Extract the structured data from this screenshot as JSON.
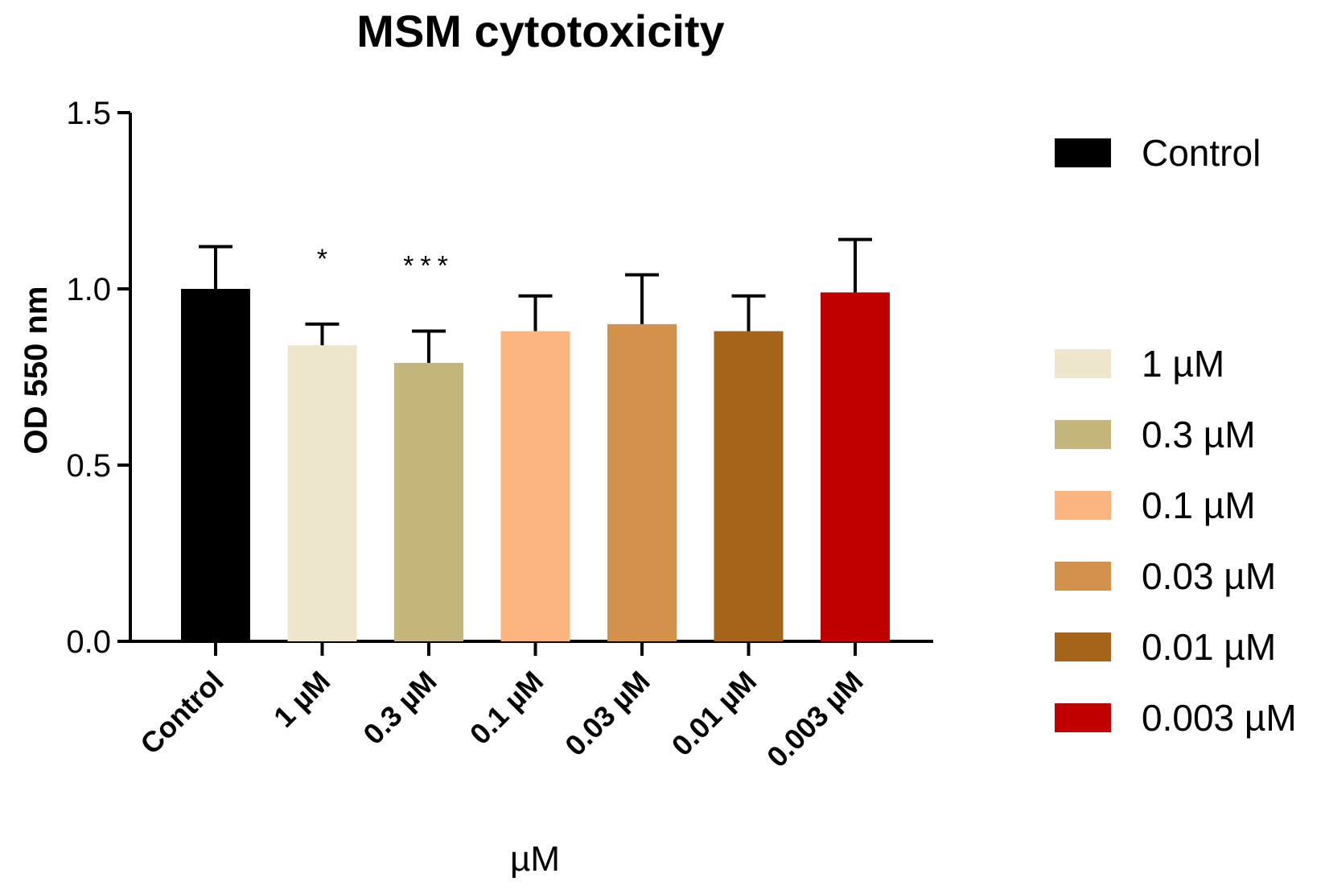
{
  "chart_data": {
    "type": "bar",
    "title": "MSM cytotoxicity",
    "xlabel": "µM",
    "ylabel": "OD 550 nm",
    "ylim": [
      0,
      1.5
    ],
    "yticks": [
      "0.0",
      "0.5",
      "1.0",
      "1.5"
    ],
    "ytick_values": [
      0,
      0.5,
      1.0,
      1.5
    ],
    "categories": [
      "Control",
      "1 µM",
      "0.3 µM",
      "0.1 µM",
      "0.03 µM",
      "0.01 µM",
      "0.003 µM"
    ],
    "values": [
      1.0,
      0.84,
      0.79,
      0.88,
      0.9,
      0.88,
      0.99
    ],
    "errors": [
      0.12,
      0.06,
      0.09,
      0.1,
      0.14,
      0.1,
      0.15
    ],
    "significance": [
      "",
      "*",
      "***",
      "",
      "",
      "",
      ""
    ],
    "colors": [
      "#000000",
      "#ede5cc",
      "#c3b57b",
      "#fcb57e",
      "#d3924b",
      "#a4651b",
      "#c00000"
    ],
    "legend": {
      "placement": "right",
      "groups": [
        [
          "Control"
        ],
        [
          "1 µM",
          "0.3 µM",
          "0.1 µM",
          "0.03 µM",
          "0.01 µM",
          "0.003 µM"
        ]
      ]
    }
  }
}
